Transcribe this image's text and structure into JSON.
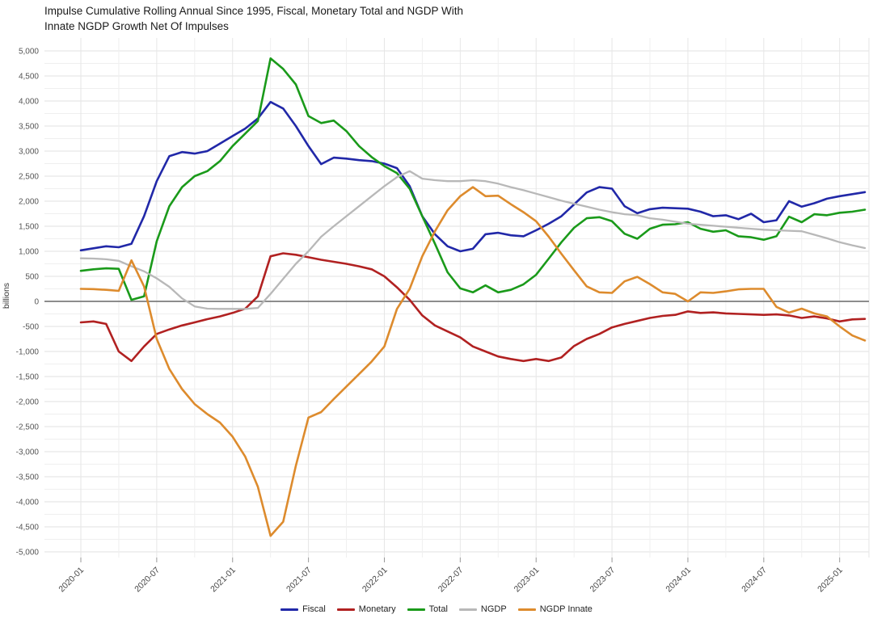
{
  "page": {
    "background": "#ffffff"
  },
  "header": {
    "title_line1": "Impulse Cumulative Rolling Annual Since 1995, Fiscal, Monetary Total and NGDP With",
    "title_line2": "Innate NGDP Growth Net Of Impulses"
  },
  "chart_data": {
    "type": "line",
    "title": "Impulse Cumulative Rolling Annual Since 1995, Fiscal, Monetary Total and NGDP With Innate NGDP Growth Net Of Impulses",
    "ylabel": "billions",
    "ylim": [
      -5000,
      5000
    ],
    "ytick_step": 500,
    "y_tick_labels": [
      "5,000",
      "4,500",
      "4,000",
      "3,500",
      "3,000",
      "2,500",
      "2,000",
      "1,500",
      "1,000",
      "500",
      "0",
      "-500",
      "-1,000",
      "-1,500",
      "-2,000",
      "-2,500",
      "-3,000",
      "-3,500",
      "-4,000",
      "-4,500",
      "-5,000"
    ],
    "x_tick_labels": [
      "2020-01",
      "2020-07",
      "2021-01",
      "2021-07",
      "2022-01",
      "2022-07",
      "2023-01",
      "2023-07",
      "2024-01",
      "2024-07",
      "2025-01"
    ],
    "x_tick_positions_month_index": [
      0,
      6,
      12,
      18,
      24,
      30,
      36,
      42,
      48,
      54,
      60
    ],
    "x_start": "2020-01",
    "x_end": "2025-03",
    "months_total": 63,
    "grid": true,
    "zero_line_color": "#7d7d7d",
    "legend_position": "bottom",
    "series": [
      {
        "name": "Fiscal",
        "color": "#2128a8",
        "values": [
          1020,
          1060,
          1100,
          1080,
          1150,
          1700,
          2400,
          2900,
          2980,
          2950,
          3000,
          3150,
          3300,
          3450,
          3650,
          3980,
          3850,
          3500,
          3100,
          2740,
          2870,
          2850,
          2820,
          2800,
          2750,
          2660,
          2300,
          1700,
          1340,
          1100,
          1000,
          1050,
          1340,
          1370,
          1320,
          1300,
          1420,
          1550,
          1700,
          1935,
          2175,
          2280,
          2250,
          1900,
          1760,
          1840,
          1870,
          1860,
          1850,
          1790,
          1700,
          1720,
          1640,
          1750,
          1580,
          1620,
          2000,
          1890,
          1960,
          2050,
          2100,
          2140,
          2180
        ]
      },
      {
        "name": "Monetary",
        "color": "#b12121",
        "values": [
          -420,
          -400,
          -450,
          -1000,
          -1190,
          -900,
          -650,
          -560,
          -480,
          -420,
          -355,
          -300,
          -230,
          -145,
          100,
          900,
          960,
          930,
          880,
          830,
          790,
          750,
          700,
          640,
          500,
          280,
          30,
          -280,
          -480,
          -600,
          -720,
          -900,
          -1000,
          -1100,
          -1150,
          -1190,
          -1150,
          -1190,
          -1120,
          -890,
          -750,
          -650,
          -520,
          -450,
          -390,
          -330,
          -290,
          -270,
          -200,
          -230,
          -220,
          -240,
          -250,
          -260,
          -270,
          -260,
          -280,
          -330,
          -300,
          -340,
          -400,
          -360,
          -350
        ]
      },
      {
        "name": "Total",
        "color": "#1a9a1a",
        "values": [
          610,
          640,
          660,
          650,
          30,
          100,
          1200,
          1900,
          2280,
          2500,
          2600,
          2800,
          3100,
          3350,
          3600,
          4850,
          4640,
          4330,
          3700,
          3560,
          3610,
          3400,
          3100,
          2880,
          2700,
          2560,
          2250,
          1700,
          1150,
          580,
          260,
          180,
          320,
          180,
          230,
          340,
          530,
          855,
          1180,
          1470,
          1660,
          1680,
          1600,
          1350,
          1250,
          1450,
          1530,
          1540,
          1580,
          1450,
          1390,
          1420,
          1300,
          1280,
          1230,
          1300,
          1690,
          1580,
          1740,
          1720,
          1770,
          1790,
          1830
        ]
      },
      {
        "name": "NGDP",
        "color": "#b8b8b8",
        "values": [
          860,
          855,
          840,
          810,
          700,
          600,
          460,
          290,
          60,
          -100,
          -145,
          -150,
          -150,
          -150,
          -130,
          150,
          450,
          750,
          1000,
          1290,
          1500,
          1700,
          1900,
          2100,
          2300,
          2480,
          2600,
          2450,
          2420,
          2400,
          2400,
          2420,
          2400,
          2350,
          2280,
          2220,
          2150,
          2080,
          2010,
          1950,
          1890,
          1830,
          1780,
          1740,
          1720,
          1660,
          1630,
          1590,
          1550,
          1530,
          1510,
          1490,
          1470,
          1450,
          1430,
          1420,
          1410,
          1400,
          1330,
          1260,
          1180,
          1120,
          1065
        ]
      },
      {
        "name": "NGDP Innate",
        "color": "#dd8b2d",
        "values": [
          250,
          245,
          230,
          210,
          820,
          300,
          -750,
          -1350,
          -1750,
          -2050,
          -2250,
          -2420,
          -2700,
          -3100,
          -3700,
          -4680,
          -4400,
          -3280,
          -2320,
          -2210,
          -1950,
          -1700,
          -1450,
          -1200,
          -900,
          -150,
          250,
          900,
          1400,
          1820,
          2100,
          2280,
          2100,
          2110,
          1940,
          1780,
          1600,
          1290,
          950,
          620,
          300,
          180,
          170,
          400,
          490,
          345,
          180,
          150,
          0,
          180,
          170,
          200,
          240,
          250,
          250,
          -110,
          -225,
          -145,
          -240,
          -300,
          -500,
          -680,
          -780
        ]
      }
    ]
  }
}
